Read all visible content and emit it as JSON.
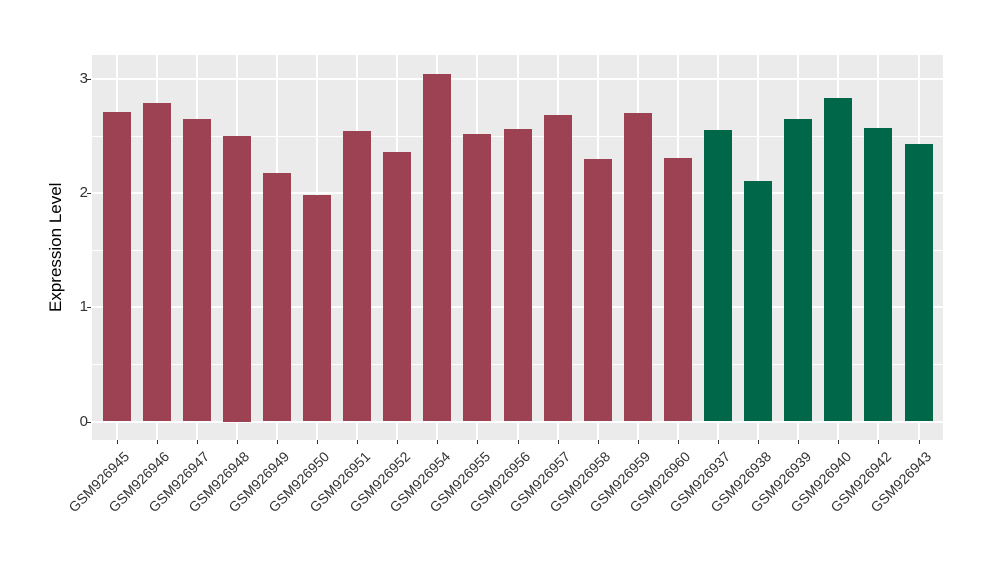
{
  "figure": {
    "background": "#FFFFFF",
    "panel_background": "#EBEBEB",
    "gridline_color": "#FFFFFF",
    "axis_text_color": "#333333",
    "axis_title_color": "#000000"
  },
  "chart_data": {
    "type": "bar",
    "title": "",
    "xlabel": "",
    "ylabel": "Expression Level",
    "categories": [
      "GSM926945",
      "GSM926946",
      "GSM926947",
      "GSM926948",
      "GSM926949",
      "GSM926950",
      "GSM926951",
      "GSM926952",
      "GSM926954",
      "GSM926955",
      "GSM926956",
      "GSM926957",
      "GSM926958",
      "GSM926959",
      "GSM926960",
      "GSM926937",
      "GSM926938",
      "GSM926939",
      "GSM926940",
      "GSM926942",
      "GSM926943"
    ],
    "values": [
      2.71,
      2.79,
      2.65,
      2.5,
      2.18,
      1.98,
      2.54,
      2.36,
      3.04,
      2.52,
      2.56,
      2.68,
      2.3,
      2.7,
      2.31,
      2.55,
      2.11,
      2.65,
      2.83,
      2.57,
      2.43
    ],
    "bar_color_keys": [
      "maroon",
      "maroon",
      "maroon",
      "maroon",
      "maroon",
      "maroon",
      "maroon",
      "maroon",
      "maroon",
      "maroon",
      "maroon",
      "maroon",
      "maroon",
      "maroon",
      "maroon",
      "green",
      "green",
      "green",
      "green",
      "green",
      "green"
    ],
    "color_map": {
      "maroon": "#9C4252",
      "green": "#006748"
    },
    "yticks": [
      0,
      1,
      2,
      3
    ],
    "yticks_minor": [
      0.5,
      1.5,
      2.5
    ],
    "ylim": [
      -0.16,
      3.21
    ],
    "grid": "white major+minor horizontal lines; white major vertical line at each category center",
    "legend": "none"
  }
}
